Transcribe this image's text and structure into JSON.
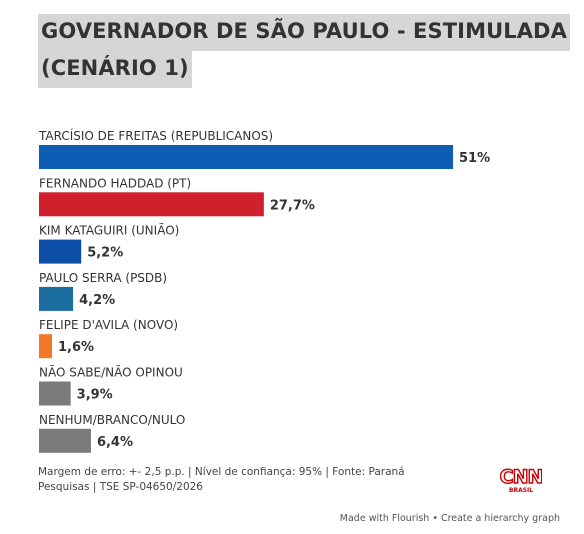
{
  "title": {
    "line1": "GOVERNADOR DE SÃO PAULO - ESTIMULADA",
    "line2": "(CENÁRIO 1)"
  },
  "chart_data": {
    "type": "bar",
    "orientation": "horizontal",
    "title": "GOVERNADOR DE SÃO PAULO - ESTIMULADA (CENÁRIO 1)",
    "xlim": [
      0,
      51
    ],
    "bars": [
      {
        "label": "TARCÍSIO DE FREITAS (REPUBLICANOS)",
        "value": 51,
        "value_label": "51%",
        "color": "#0d5db5"
      },
      {
        "label": "FERNANDO HADDAD (PT)",
        "value": 27.7,
        "value_label": "27,7%",
        "color": "#d0202e"
      },
      {
        "label": "KIM KATAGUIRI (UNIÃO)",
        "value": 5.2,
        "value_label": "5,2%",
        "color": "#0d4ea8"
      },
      {
        "label": "PAULO SERRA (PSDB)",
        "value": 4.2,
        "value_label": "4,2%",
        "color": "#1d6ea0"
      },
      {
        "label": "FELIPE D'AVILA (NOVO)",
        "value": 1.6,
        "value_label": "1,6%",
        "color": "#f07828"
      },
      {
        "label": "NÃO SABE/NÃO OPINOU",
        "value": 3.9,
        "value_label": "3,9%",
        "color": "#7b7b7b"
      },
      {
        "label": "NENHUM/BRANCO/NULO",
        "value": 6.4,
        "value_label": "6,4%",
        "color": "#7b7b7b"
      }
    ]
  },
  "footer": {
    "note": "Margem de erro: +- 2,5 p.p. | Nível de confiança: 95% | Fonte: Paraná Pesquisas | TSE SP-04650/2026"
  },
  "logo": {
    "text": "CNN",
    "subtext": "BRASIL",
    "color": "#cc0000"
  },
  "credits": {
    "made_with": "Made with Flourish",
    "separator": "•",
    "create": "Create a hierarchy graph"
  }
}
